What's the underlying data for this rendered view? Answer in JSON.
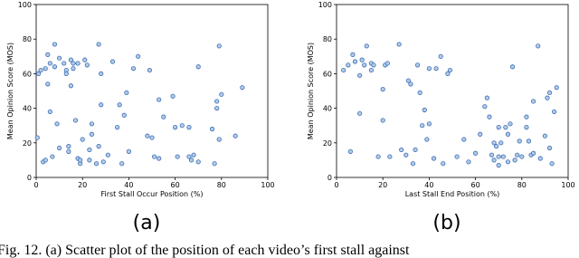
{
  "chart_data": [
    {
      "type": "scatter",
      "panel_label": "(a)",
      "x_label": "First Stall Occur Position (%)",
      "y_label": "Mean Opinion Score (MOS)",
      "xlim": [
        0,
        100
      ],
      "ylim": [
        0,
        100
      ],
      "xticks": [
        0,
        20,
        40,
        60,
        80,
        100
      ],
      "yticks": [
        0,
        20,
        40,
        60,
        80,
        100
      ],
      "color": "#3a6db5",
      "x": [
        0.5,
        1,
        2,
        3,
        4,
        4,
        5,
        5,
        6,
        6,
        7,
        8,
        8,
        9,
        10,
        10,
        12,
        13,
        13,
        14,
        14,
        15,
        15,
        16,
        16,
        17,
        18,
        18,
        19,
        19,
        20,
        21,
        22,
        23,
        23,
        24,
        24,
        26,
        27,
        27,
        28,
        28,
        29,
        31,
        33,
        35,
        36,
        37,
        38,
        39,
        40,
        42,
        44,
        48,
        49,
        50,
        51,
        53,
        53,
        55,
        59,
        60,
        61,
        63,
        66,
        66,
        67,
        68,
        70,
        70,
        76,
        77,
        78,
        78,
        79,
        79,
        80,
        86,
        89
      ],
      "values": [
        23,
        60,
        62,
        9,
        10,
        63,
        71,
        54,
        66,
        38,
        12,
        77,
        64,
        31,
        69,
        17,
        66,
        62,
        60,
        18,
        15,
        68,
        53,
        66,
        63,
        33,
        66,
        11,
        8,
        10,
        22,
        68,
        65,
        10,
        16,
        25,
        31,
        8,
        77,
        18,
        60,
        42,
        9,
        13,
        67,
        29,
        42,
        8,
        36,
        49,
        15,
        63,
        70,
        24,
        62,
        23,
        12,
        11,
        45,
        35,
        47,
        29,
        12,
        30,
        29,
        12,
        10,
        13,
        9,
        64,
        28,
        8,
        40,
        44,
        22,
        76,
        48,
        24,
        52
      ]
    },
    {
      "type": "scatter",
      "panel_label": "(b)",
      "x_label": "Last Stall End Position (%)",
      "y_label": "Mean Opinion Score (MOS)",
      "xlim": [
        0,
        100
      ],
      "ylim": [
        0,
        100
      ],
      "xticks": [
        0,
        20,
        40,
        60,
        80,
        100
      ],
      "yticks": [
        0,
        20,
        40,
        60,
        80,
        100
      ],
      "color": "#3a6db5",
      "x": [
        3,
        5,
        6,
        7,
        8,
        10,
        10,
        11,
        12,
        13,
        15,
        15,
        16,
        18,
        20,
        20,
        21,
        22,
        23,
        27,
        28,
        30,
        31,
        32,
        33,
        34,
        35,
        36,
        37,
        38,
        39,
        40,
        40,
        42,
        43,
        45,
        46,
        48,
        49,
        52,
        55,
        57,
        60,
        62,
        64,
        65,
        66,
        67,
        68,
        68,
        69,
        70,
        70,
        70,
        71,
        72,
        73,
        74,
        74,
        75,
        76,
        77,
        78,
        79,
        80,
        82,
        82,
        83,
        84,
        85,
        85,
        87,
        88,
        90,
        91,
        92,
        92,
        93,
        94,
        95
      ],
      "values": [
        62,
        65,
        15,
        71,
        67,
        59,
        37,
        68,
        65,
        76,
        62,
        66,
        65,
        12,
        33,
        51,
        65,
        66,
        12,
        77,
        16,
        13,
        56,
        54,
        8,
        16,
        65,
        49,
        30,
        39,
        22,
        63,
        31,
        11,
        63,
        70,
        8,
        60,
        62,
        12,
        22,
        9,
        14,
        25,
        41,
        46,
        35,
        13,
        20,
        10,
        18,
        29,
        7,
        12,
        20,
        12,
        29,
        25,
        9,
        31,
        64,
        10,
        13,
        21,
        12,
        35,
        29,
        21,
        13,
        44,
        14,
        76,
        11,
        24,
        46,
        49,
        17,
        8,
        38,
        52
      ]
    }
  ],
  "caption": "Fig. 12.   (a) Scatter plot of the position of each video’s first stall against"
}
